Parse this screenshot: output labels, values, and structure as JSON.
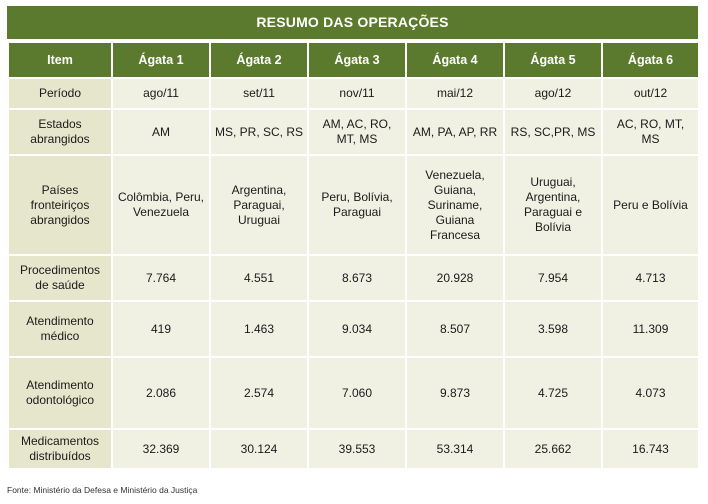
{
  "title": "RESUMO DAS OPERAÇÕES",
  "columns": [
    "Item",
    "Ágata 1",
    "Ágata 2",
    "Ágata 3",
    "Ágata 4",
    "Ágata 5",
    "Ágata 6"
  ],
  "rows": [
    {
      "label": "Período",
      "values": [
        "ago/11",
        "set/11",
        "nov/11",
        "mai/12",
        "ago/12",
        "out/12"
      ]
    },
    {
      "label": "Estados abrangidos",
      "values": [
        "AM",
        "MS, PR, SC, RS",
        "AM, AC, RO, MT, MS",
        "AM, PA, AP, RR",
        "RS, SC,PR, MS",
        "AC, RO, MT, MS"
      ]
    },
    {
      "label": "Países fronteiriços abrangidos",
      "values": [
        "Colômbia, Peru, Venezuela",
        "Argentina, Paraguai, Uruguai",
        "Peru, Bolívia, Paraguai",
        "Venezuela, Guiana, Suriname, Guiana Francesa",
        "Uruguai, Argentina, Paraguai e Bolívia",
        "Peru e Bolívia"
      ]
    },
    {
      "label": "Procedimentos de saúde",
      "values": [
        "7.764",
        "4.551",
        "8.673",
        "20.928",
        "7.954",
        "4.713"
      ]
    },
    {
      "label": "Atendimento médico",
      "values": [
        "419",
        "1.463",
        "9.034",
        "8.507",
        "3.598",
        "11.309"
      ]
    },
    {
      "label": "Atendimento odontológico",
      "values": [
        "2.086",
        "2.574",
        "7.060",
        "9.873",
        "4.725",
        "4.073"
      ]
    },
    {
      "label": "Medicamentos distribuídos",
      "values": [
        "32.369",
        "30.124",
        "39.553",
        "53.314",
        "25.662",
        "16.743"
      ]
    }
  ],
  "source": "Fonte: Ministério da Defesa e Ministério da Justiça"
}
